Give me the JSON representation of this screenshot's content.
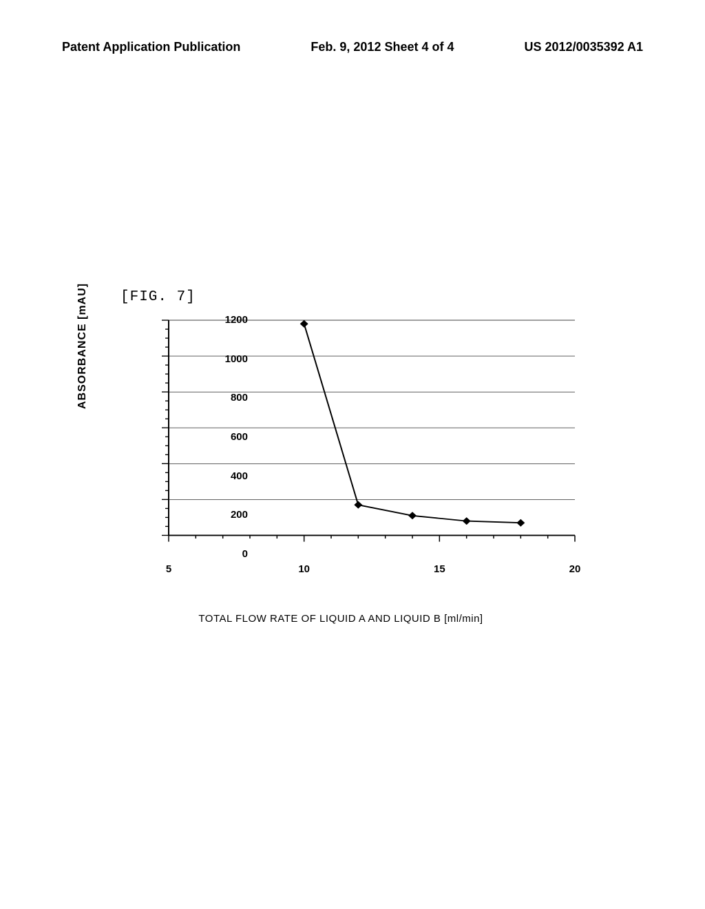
{
  "header": {
    "left": "Patent Application Publication",
    "center": "Feb. 9, 2012  Sheet 4 of 4",
    "right": "US 2012/0035392 A1"
  },
  "figure_label": "[FIG. 7]",
  "chart": {
    "type": "line",
    "y_label": "ABSORBANCE  [mAU]",
    "x_label": "TOTAL FLOW RATE OF LIQUID A AND LIQUID B      [ml/min]",
    "xlim": [
      5,
      20
    ],
    "ylim": [
      0,
      1200
    ],
    "y_ticks": [
      0,
      200,
      400,
      600,
      800,
      1000,
      1200
    ],
    "x_ticks": [
      5,
      10,
      15,
      20
    ],
    "x_minor_step": 1,
    "y_minor_step": 50,
    "data_points": [
      {
        "x": 10,
        "y": 1180
      },
      {
        "x": 12,
        "y": 170
      },
      {
        "x": 14,
        "y": 110
      },
      {
        "x": 16,
        "y": 80
      },
      {
        "x": 18,
        "y": 70
      }
    ],
    "line_color": "#000000",
    "line_width": 2,
    "marker_color": "#000000",
    "marker_size": 12,
    "grid_color": "#000000",
    "grid_width": 0.7,
    "background_color": "#ffffff",
    "axis_color": "#000000",
    "axis_width": 2
  }
}
